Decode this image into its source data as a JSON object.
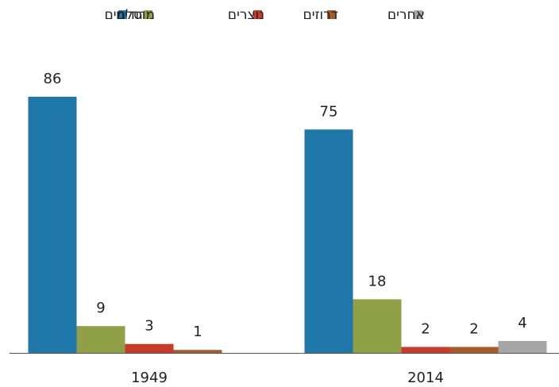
{
  "chart_data": {
    "type": "bar",
    "categories": [
      "1949",
      "2014"
    ],
    "series": [
      {
        "name": "יהודים",
        "color": "#1f78a9",
        "values": [
          86,
          75
        ]
      },
      {
        "name": "מוסלמים",
        "color": "#8fa046",
        "values": [
          9,
          18
        ]
      },
      {
        "name": "נוצרים",
        "color": "#c83a2a",
        "values": [
          3,
          2
        ]
      },
      {
        "name": "דרוזים",
        "color": "#a95a2a",
        "values": [
          1,
          2
        ]
      },
      {
        "name": "אחרים",
        "color": "#a6a6a6",
        "values": [
          null,
          4
        ]
      }
    ],
    "ylim": [
      0,
      100
    ],
    "legend": "top"
  }
}
